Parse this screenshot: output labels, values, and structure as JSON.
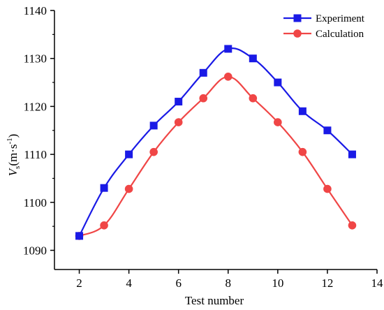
{
  "chart_data": {
    "type": "line",
    "xlabel": "Test number",
    "ylabel_main": "V",
    "ylabel_sub": "s",
    "ylabel_unit_open": "(m·s",
    "ylabel_unit_exp": "-1",
    "ylabel_unit_close": ")",
    "xlim": [
      1,
      14
    ],
    "ylim": [
      1086,
      1140
    ],
    "xticks": [
      "2",
      "4",
      "6",
      "8",
      "10",
      "12",
      "14"
    ],
    "xtick_values": [
      2,
      4,
      6,
      8,
      10,
      12,
      14
    ],
    "yticks": [
      "1090",
      "1100",
      "1110",
      "1120",
      "1130",
      "1140"
    ],
    "ytick_values": [
      1090,
      1100,
      1110,
      1120,
      1130,
      1140
    ],
    "grid": false,
    "legend_position": "top-right",
    "x": [
      2,
      3,
      4,
      5,
      6,
      7,
      8,
      9,
      10,
      11,
      12,
      13
    ],
    "series": [
      {
        "name": "Experiment",
        "marker": "square",
        "color": "#1a1ae6",
        "values": [
          1093,
          1103,
          1110,
          1116,
          1121,
          1127,
          1132,
          1130,
          1125,
          1119,
          1115,
          1110
        ]
      },
      {
        "name": "Calculation",
        "marker": "circle",
        "color": "#f04646",
        "values": [
          1093,
          1095.2,
          1102.8,
          1110.5,
          1116.7,
          1121.7,
          1126.2,
          1121.7,
          1116.7,
          1110.5,
          1102.8,
          1095.2
        ]
      }
    ]
  }
}
